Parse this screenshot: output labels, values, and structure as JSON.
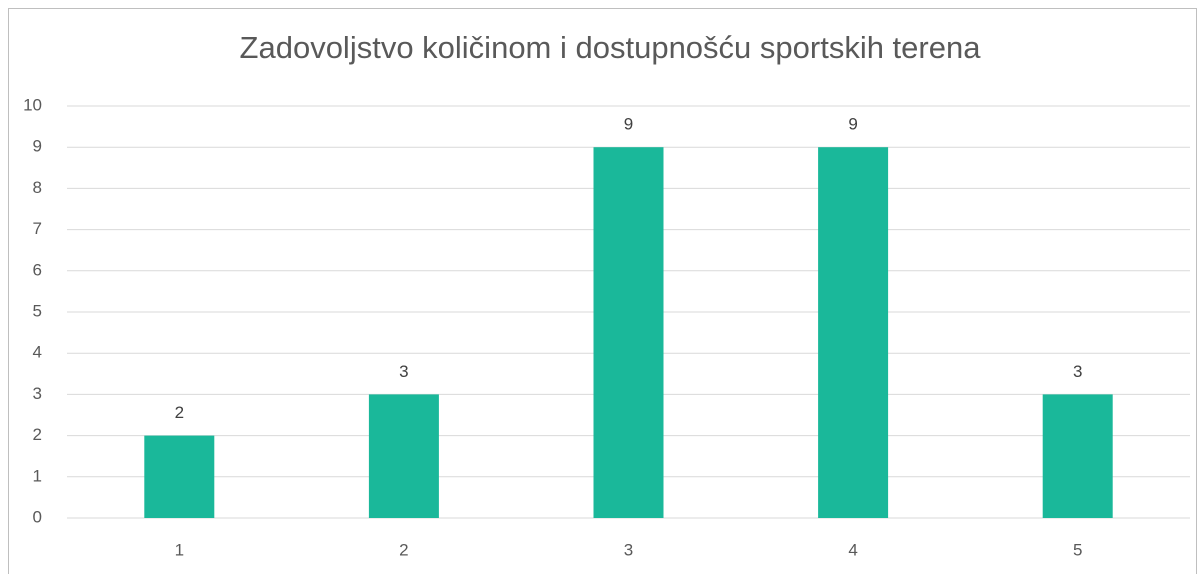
{
  "chart_data": {
    "type": "bar",
    "title": "Zadovoljstvo količinom i dostupnošću sportskih terena",
    "categories": [
      "1",
      "2",
      "3",
      "4",
      "5"
    ],
    "values": [
      2,
      3,
      9,
      9,
      3
    ],
    "color": "#1ab89a",
    "ylim": [
      0,
      10
    ],
    "yticks": [
      0,
      1,
      2,
      3,
      4,
      5,
      6,
      7,
      8,
      9,
      10
    ],
    "grid": true,
    "data_labels": true
  }
}
